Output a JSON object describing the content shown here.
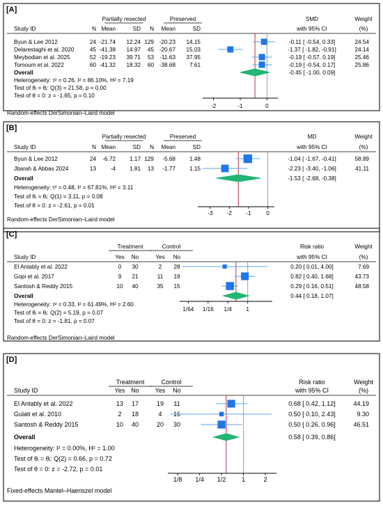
{
  "chart_data": [
    {
      "type": "forest",
      "panel_label": "[A]",
      "col_header_left": "Study ID",
      "groups": [
        {
          "title": "Partially resected",
          "cols": [
            "N",
            "Mean",
            "SD"
          ]
        },
        {
          "title": "Preserved",
          "cols": [
            "N",
            "Mean",
            "SD"
          ]
        }
      ],
      "effect_header": [
        "SMD",
        "with 95% CI"
      ],
      "weight_header": [
        "Weight",
        "(%)"
      ],
      "studies": [
        {
          "name": "Byun & Lee 2012",
          "cells": [
            "24",
            "-21.74",
            "12.24",
            "129",
            "-20.23",
            "14.15"
          ],
          "est": -0.11,
          "lo": -0.54,
          "hi": 0.33,
          "ci_text": "-0.11 [ -0.54,  0.33]",
          "weight": "24.54"
        },
        {
          "name": "Delarestaghi et al. 2020",
          "cells": [
            "45",
            "-41.38",
            "14.97",
            "45",
            "-20.67",
            "15.03"
          ],
          "est": -1.37,
          "lo": -1.82,
          "hi": -0.91,
          "ci_text": "-1.37 [ -1.82, -0.91]",
          "weight": "24.14"
        },
        {
          "name": "Meybodian et al. 2025",
          "cells": [
            "52",
            "-19.23",
            "39.71",
            "53",
            "-11.63",
            "37.95"
          ],
          "est": -0.19,
          "lo": -0.57,
          "hi": 0.19,
          "ci_text": "-0.19 [ -0.57,  0.19]",
          "weight": "25.46"
        },
        {
          "name": "Tomoum et al. 2022",
          "cells": [
            "60",
            "-41.32",
            "18.32",
            "60",
            "-38.68",
            "7.61"
          ],
          "est": -0.19,
          "lo": -0.54,
          "hi": 0.17,
          "ci_text": "-0.19 [ -0.54,  0.17]",
          "weight": "25.86"
        }
      ],
      "overall": {
        "label": "Overall",
        "est": -0.45,
        "lo": -1.0,
        "hi": 0.09,
        "ci_text": "-0.45 [ -1.00,  0.09]"
      },
      "stats": [
        "Heterogeneity: τ² = 0.26, I² = 86.10%, H² = 7.19",
        "Test of θᵢ = θⱼ: Q(3) = 21.58, p = 0.00",
        "Test of θ = 0: z = -1.65, p = 0.10"
      ],
      "scale": "linear",
      "xlim": [
        -2.3,
        0.3
      ],
      "ticks": [
        -2,
        -1,
        0
      ],
      "tick_labels": [
        "-2",
        "-1",
        "0"
      ],
      "null_value": 0,
      "model_note": "Random-effects DerSimonian–Laird model"
    },
    {
      "type": "forest",
      "panel_label": "[B]",
      "col_header_left": "Study ID",
      "groups": [
        {
          "title": "Partially resected",
          "cols": [
            "N",
            "Mean",
            "SD"
          ]
        },
        {
          "title": "Preserved",
          "cols": [
            "N",
            "Mean",
            "SD"
          ]
        }
      ],
      "effect_header": [
        "MD",
        "with 95% CI"
      ],
      "weight_header": [
        "Weight",
        "(%)"
      ],
      "studies": [
        {
          "name": "Byun & Lee 2012",
          "cells": [
            "24",
            "-6.72",
            "1.17",
            "129",
            "-5.68",
            "1.48"
          ],
          "est": -1.04,
          "lo": -1.67,
          "hi": -0.41,
          "ci_text": "-1.04 [ -1.67, -0.41]",
          "weight": "58.89"
        },
        {
          "name": "Jbarah & Abbas 2024",
          "cells": [
            "13",
            "-4",
            "1.81",
            "13",
            "-1.77",
            "1.15"
          ],
          "est": -2.23,
          "lo": -3.4,
          "hi": -1.06,
          "ci_text": "-2.23 [ -3.40, -1.06]",
          "weight": "41.11"
        }
      ],
      "overall": {
        "label": "Overall",
        "est": -1.53,
        "lo": -2.68,
        "hi": -0.38,
        "ci_text": "-1.53 [ -2.68, -0.38]"
      },
      "stats": [
        "Heterogeneity: τ² = 0.48, I² = 67.81%, H² = 3.11",
        "Test of θᵢ = θⱼ: Q(1) = 3.11, p = 0.08",
        "Test of θ = 0: z = -2.61, p = 0.01"
      ],
      "scale": "linear",
      "xlim": [
        -3.5,
        0.2
      ],
      "ticks": [
        -3,
        -2,
        -1,
        0
      ],
      "tick_labels": [
        "-3",
        "-2",
        "-1",
        "0"
      ],
      "null_value": 0,
      "model_note": "Random-effects DerSimonian–Laird model"
    },
    {
      "type": "forest",
      "panel_label": "[C]",
      "col_header_left": "Study ID",
      "groups": [
        {
          "title": "Treatment",
          "cols": [
            "Yes",
            "No"
          ]
        },
        {
          "title": "Control",
          "cols": [
            "Yes",
            "No"
          ]
        }
      ],
      "effect_header": [
        "Risk ratio",
        "with 95% CI"
      ],
      "weight_header": [
        "Weight",
        "(%)"
      ],
      "studies": [
        {
          "name": "El Antably et al. 2022",
          "cells": [
            "0",
            "30",
            "2",
            "28"
          ],
          "est": 0.2,
          "lo": 0.01,
          "hi": 4.0,
          "ci_text": "0.20 [ 0.01,  4.00]",
          "weight": "7.69"
        },
        {
          "name": "Gopi et al. 2017",
          "cells": [
            "9",
            "21",
            "11",
            "19"
          ],
          "est": 0.82,
          "lo": 0.4,
          "hi": 1.68,
          "ci_text": "0.82 [ 0.40,  1.68]",
          "weight": "43.73"
        },
        {
          "name": "Santosh & Reddy 2015",
          "cells": [
            "10",
            "40",
            "35",
            "15"
          ],
          "est": 0.29,
          "lo": 0.16,
          "hi": 0.51,
          "ci_text": "0.29 [ 0.16,  0.51]",
          "weight": "48.58"
        }
      ],
      "overall": {
        "label": "Overall",
        "est": 0.44,
        "lo": 0.18,
        "hi": 1.07,
        "ci_text": "0.44 [ 0.18,  1.07]"
      },
      "stats": [
        "Heterogeneity: τ² = 0.33, I² = 61.49%, H² = 2.60",
        "Test of θᵢ = θⱼ: Q(2) = 5.19, p = 0.07",
        "Test of θ = 0: z = -1.81, p = 0.07"
      ],
      "scale": "log",
      "xlim": [
        0.0104,
        4.6
      ],
      "ticks": [
        0.015625,
        0.0625,
        0.25,
        1
      ],
      "tick_labels": [
        "1/64",
        "1/16",
        "1/4",
        "1"
      ],
      "null_value": 1,
      "model_note": "Random-effects DerSimonian–Laird model"
    },
    {
      "type": "forest",
      "panel_label": "[D]",
      "col_header_left": "Study ID",
      "groups": [
        {
          "title": "Treatment",
          "cols": [
            "Yes",
            "No"
          ]
        },
        {
          "title": "Control",
          "cols": [
            "Yes",
            "No"
          ]
        }
      ],
      "effect_header": [
        "Risk ratio",
        "with 95% CI"
      ],
      "weight_header": [
        "Weight",
        "(%)"
      ],
      "studies": [
        {
          "name": "El Antably et al. 2022",
          "cells": [
            "13",
            "17",
            "19",
            "11"
          ],
          "est": 0.68,
          "lo": 0.42,
          "hi": 1.12,
          "ci_text": "0.68 [ 0.42,  1.12]",
          "weight": "44.19"
        },
        {
          "name": "Gulati et al. 2010",
          "cells": [
            "2",
            "18",
            "4",
            "16"
          ],
          "est": 0.5,
          "lo": 0.1,
          "hi": 2.43,
          "ci_text": "0.50 [ 0.10,  2.43]",
          "weight": "9.30"
        },
        {
          "name": "Santosh & Reddy 2015",
          "cells": [
            "10",
            "40",
            "20",
            "30"
          ],
          "est": 0.5,
          "lo": 0.26,
          "hi": 0.96,
          "ci_text": "0.50 [ 0.26,  0.96]",
          "weight": "46.51"
        }
      ],
      "overall": {
        "label": "Overall",
        "est": 0.58,
        "lo": 0.39,
        "hi": 0.86,
        "ci_text": "0.58 [ 0.39,  0.86]"
      },
      "stats": [
        "Heterogeneity: I² = 0.00%, H² = 1.00",
        "Test of θᵢ = θⱼ: Q(2) = 0.66, p = 0.72",
        "Test of θ = 0: z = -2.72, p = 0.01"
      ],
      "scale": "log",
      "xlim": [
        0.1,
        2.6
      ],
      "ticks": [
        0.125,
        0.25,
        0.5,
        1,
        2
      ],
      "tick_labels": [
        "1/8",
        "1/4",
        "1/2",
        "1",
        "2"
      ],
      "null_value": 1,
      "model_note": "Fixed-effects Mantel–Haenszel model"
    }
  ],
  "colors": {
    "marker": "#1f77e8",
    "ci_line": "#5aa0f0",
    "diamond": "#22b573",
    "overall_line": "#c0304a",
    "null_line": "#9a9aa8",
    "border": "#222222"
  }
}
